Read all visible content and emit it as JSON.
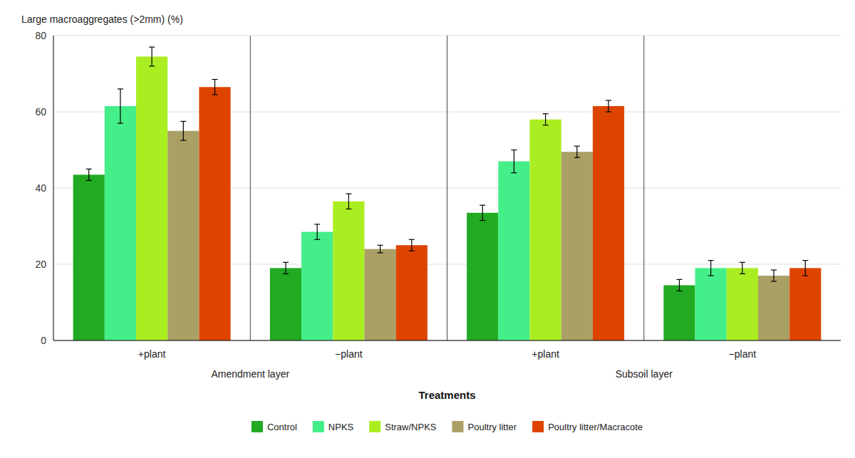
{
  "chart_data": {
    "type": "bar",
    "categories": [
      "+plant",
      "−plant",
      "+plant",
      "−plant"
    ],
    "annotations": [
      "Amendment layer",
      "Subsoil layer"
    ],
    "x_label": "Treatments",
    "y_label": "Large macroaggregates (>2mm) (%)",
    "series": [
      {
        "name": "Control",
        "color": "#22aa22",
        "values": [
          43.5,
          19.0,
          33.5,
          14.5
        ],
        "errors": [
          1.5,
          1.5,
          2.0,
          1.5
        ]
      },
      {
        "name": "NPKS",
        "color": "#44ee88",
        "values": [
          61.5,
          28.5,
          47.0,
          19.0
        ],
        "errors": [
          4.5,
          2.0,
          3.0,
          2.0
        ]
      },
      {
        "name": "Straw/NPKS",
        "color": "#aaee22",
        "values": [
          74.5,
          36.5,
          58.0,
          19.0
        ],
        "errors": [
          2.5,
          2.0,
          1.5,
          1.5
        ]
      },
      {
        "name": "Poultry litter",
        "color": "#aaa066",
        "values": [
          55.0,
          24.0,
          49.5,
          17.0
        ],
        "errors": [
          2.5,
          1.0,
          1.5,
          1.5
        ]
      },
      {
        "name": "Poultry litter/Macracote",
        "color": "#dd4400",
        "values": [
          66.5,
          25.0,
          61.5,
          19.0
        ],
        "errors": [
          2.0,
          1.5,
          1.5,
          2.0
        ]
      }
    ],
    "ylim": [
      0,
      80
    ],
    "yticks": [
      0,
      20,
      40,
      60,
      80
    ],
    "grid": true,
    "legend": "bottom"
  }
}
